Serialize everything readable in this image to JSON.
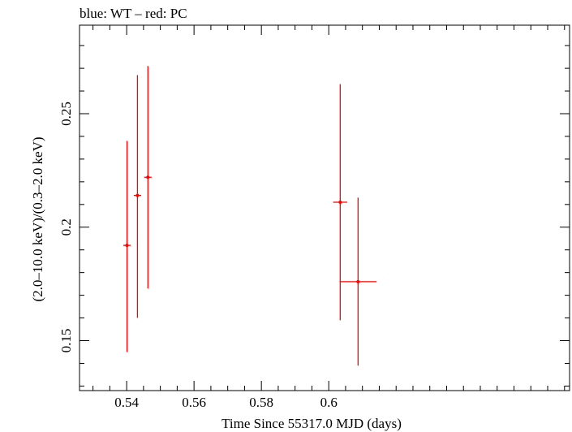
{
  "chart_data": {
    "type": "scatter",
    "title": "blue: WT – red: PC",
    "xlabel": "Time Since 55317.0 MJD (days)",
    "ylabel": "(2.0–10.0 keV)/(0.3–2.0 keV)",
    "xlim": [
      0.526,
      0.6715
    ],
    "ylim": [
      0.128,
      0.289
    ],
    "x_ticks": [
      {
        "value": 0.54,
        "label": "0.54"
      },
      {
        "value": 0.56,
        "label": "0.56"
      },
      {
        "value": 0.58,
        "label": "0.58"
      },
      {
        "value": 0.6,
        "label": "0.6"
      }
    ],
    "y_ticks": [
      {
        "value": 0.15,
        "label": "0.15"
      },
      {
        "value": 0.2,
        "label": "0.2"
      },
      {
        "value": 0.25,
        "label": "0.25"
      }
    ],
    "x_minor_step": 0.005,
    "y_minor_step": 0.01,
    "series": [
      {
        "name": "PC",
        "color": "#ff0000",
        "points": [
          {
            "x": 0.5401,
            "xerr_low": 0.0011,
            "xerr_high": 0.0011,
            "y": 0.192,
            "yerr_low": 0.047,
            "yerr_high": 0.046
          },
          {
            "x": 0.5432,
            "xerr_low": 0.0011,
            "xerr_high": 0.0011,
            "y": 0.214,
            "yerr_low": 0.054,
            "yerr_high": 0.053
          },
          {
            "x": 0.5463,
            "xerr_low": 0.0011,
            "xerr_high": 0.0011,
            "y": 0.222,
            "yerr_low": 0.049,
            "yerr_high": 0.049
          },
          {
            "x": 0.6034,
            "xerr_low": 0.0021,
            "xerr_high": 0.0021,
            "y": 0.211,
            "yerr_low": 0.052,
            "yerr_high": 0.052
          },
          {
            "x": 0.6087,
            "xerr_low": 0.0055,
            "xerr_high": 0.0055,
            "y": 0.176,
            "yerr_low": 0.037,
            "yerr_high": 0.037
          }
        ]
      }
    ]
  }
}
